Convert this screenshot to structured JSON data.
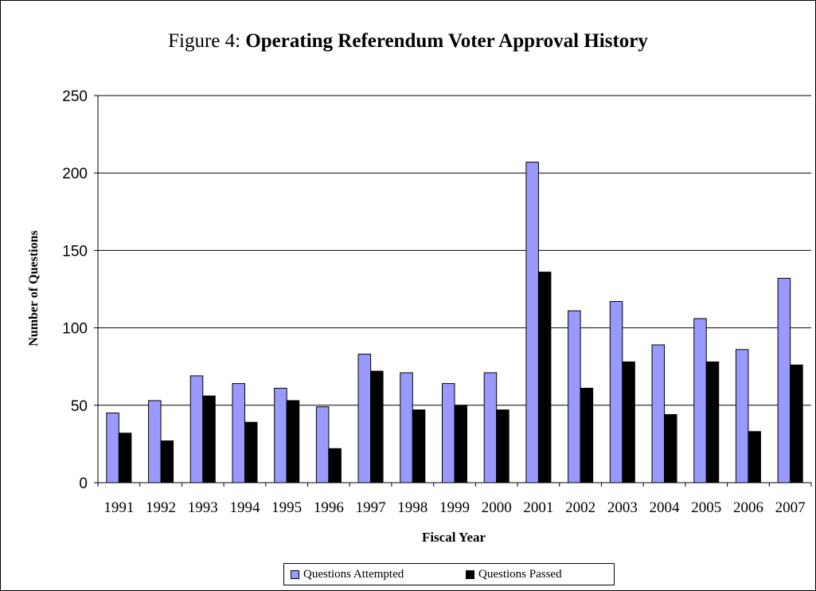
{
  "title": {
    "prefix": "Figure 4:",
    "main": "Operating Referendum Voter Approval History"
  },
  "chart_data": {
    "type": "bar",
    "title": "Figure 4: Operating Referendum Voter Approval History",
    "xlabel": "Fiscal Year",
    "ylabel": "Number of Questions",
    "ylim": [
      0,
      250
    ],
    "yticks": [
      0,
      50,
      100,
      150,
      200,
      250
    ],
    "grid": true,
    "legend_position": "bottom",
    "categories": [
      "1991",
      "1992",
      "1993",
      "1994",
      "1995",
      "1996",
      "1997",
      "1998",
      "1999",
      "2000",
      "2001",
      "2002",
      "2003",
      "2004",
      "2005",
      "2006",
      "2007"
    ],
    "series": [
      {
        "name": "Questions Attempted",
        "color": "#9999ff",
        "values": [
          45,
          53,
          69,
          64,
          61,
          49,
          83,
          71,
          64,
          71,
          207,
          111,
          117,
          89,
          106,
          86,
          132
        ]
      },
      {
        "name": "Questions Passed",
        "color": "#000000",
        "values": [
          32,
          27,
          56,
          39,
          53,
          22,
          72,
          47,
          50,
          47,
          136,
          61,
          78,
          44,
          78,
          33,
          76
        ]
      }
    ]
  }
}
